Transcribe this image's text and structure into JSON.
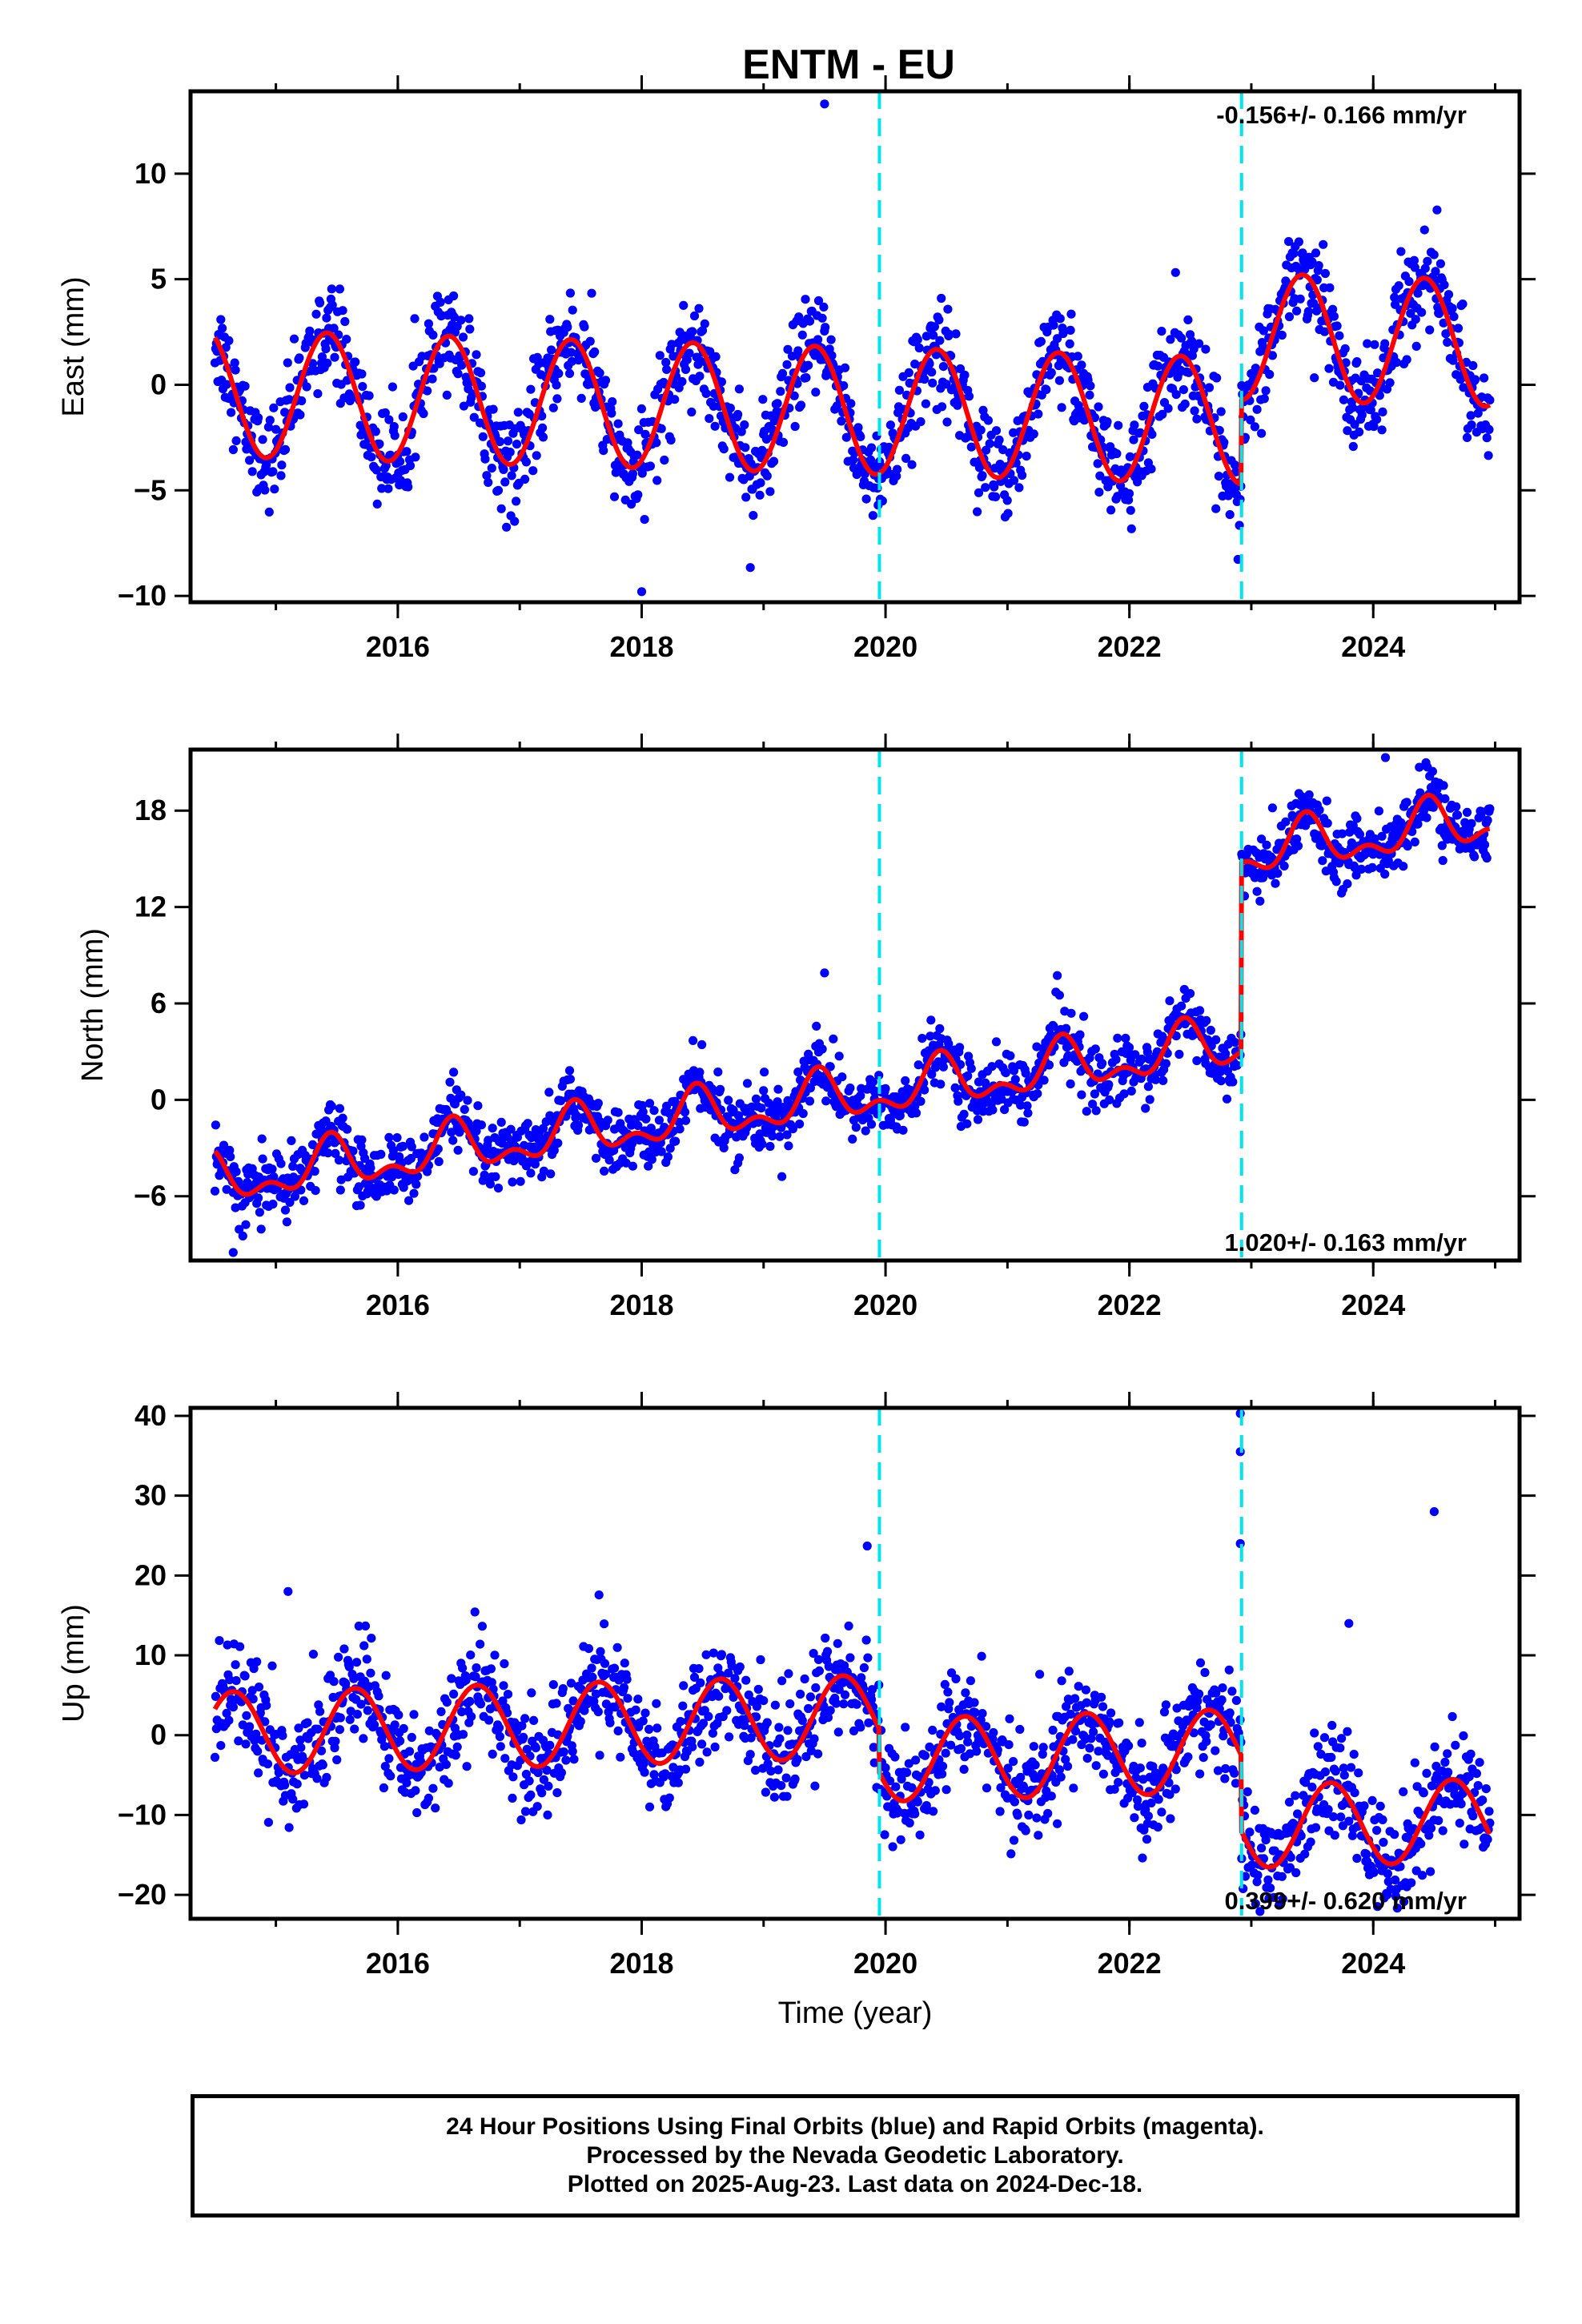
{
  "title": "ENTM - EU",
  "footer": {
    "line1": "24 Hour Positions Using Final Orbits (blue) and Rapid Orbits (magenta).",
    "line2": "Processed by the Nevada Geodetic Laboratory.",
    "line3": "Plotted on 2025-Aug-23. Last data on 2024-Dec-18."
  },
  "colors": {
    "points": "#0000ff",
    "model": "#ff0000",
    "steps": "#00e5ee",
    "frame": "#000000"
  },
  "step_epochs": [
    2019.95,
    2022.92
  ],
  "chart_data": [
    {
      "type": "scatter",
      "name": "east",
      "ylabel": "East (mm)",
      "xlabel": "",
      "xlim": [
        2014.3,
        2025.2
      ],
      "ylim": [
        -10.3,
        13.9
      ],
      "x_ticks": [
        2016,
        2018,
        2020,
        2022,
        2024
      ],
      "x_tick_labels": [
        "2016",
        "2018",
        "2020",
        "2022",
        "2024"
      ],
      "y_ticks": [
        -10,
        -5,
        0,
        5,
        10
      ],
      "y_tick_labels": [
        "−10",
        "−5",
        "0",
        "5",
        "10"
      ],
      "rate": "-0.156+/- 0.166 mm/yr",
      "rate_position": "top-right",
      "data_start": 2014.5,
      "data_end": 2024.96,
      "model": {
        "offset": -1.1,
        "trend": -0.156,
        "ref_epoch": 2019.0,
        "annual_amp": 3.0,
        "annual_peak": 2014.42,
        "semi_amp": 0.0,
        "steps": [
          {
            "epoch": 2019.95,
            "size": 0
          },
          {
            "epoch": 2022.92,
            "size": 4.0
          }
        ]
      },
      "noise": 1.15,
      "outliers": [
        [
          2019.5,
          13.3
        ],
        [
          2018.0,
          -9.8
        ]
      ]
    },
    {
      "type": "scatter",
      "name": "north",
      "ylabel": "North (mm)",
      "xlabel": "",
      "xlim": [
        2014.3,
        2025.2
      ],
      "ylim": [
        -10.0,
        21.8
      ],
      "x_ticks": [
        2016,
        2018,
        2020,
        2022,
        2024
      ],
      "x_tick_labels": [
        "2016",
        "2018",
        "2020",
        "2022",
        "2024"
      ],
      "y_ticks": [
        -6,
        0,
        6,
        12,
        18
      ],
      "y_tick_labels": [
        "−6",
        "0",
        "6",
        "12",
        "18"
      ],
      "rate": "1.020+/- 0.163 mm/yr",
      "rate_position": "bottom-right",
      "data_start": 2014.5,
      "data_end": 2024.96,
      "model": {
        "offset": -0.5,
        "trend": 1.02,
        "ref_epoch": 2019.0,
        "annual_amp": 1.3,
        "annual_peak": 2014.45,
        "semi_amp": 0.8,
        "steps": [
          {
            "epoch": 2019.95,
            "size": 0
          },
          {
            "epoch": 2022.92,
            "size": 11.8
          }
        ]
      },
      "noise": 1.0,
      "outliers": [
        [
          2019.5,
          7.9
        ],
        [
          2024.1,
          21.3
        ],
        [
          2014.65,
          -9.5
        ]
      ]
    },
    {
      "type": "scatter",
      "name": "up",
      "ylabel": "Up (mm)",
      "xlabel": "Time (year)",
      "xlim": [
        2014.3,
        2025.2
      ],
      "ylim": [
        -23.0,
        41.0
      ],
      "x_ticks": [
        2016,
        2018,
        2020,
        2022,
        2024
      ],
      "x_tick_labels": [
        "2016",
        "2018",
        "2020",
        "2022",
        "2024"
      ],
      "y_ticks": [
        -20,
        -10,
        0,
        10,
        20,
        30,
        40
      ],
      "y_tick_labels": [
        "−20",
        "−10",
        "0",
        "10",
        "20",
        "30",
        "40"
      ],
      "rate": "0.399+/- 0.620 mm/yr",
      "rate_position": "bottom-right",
      "data_start": 2014.5,
      "data_end": 2024.96,
      "model": {
        "offset": 2.0,
        "trend": 0.399,
        "ref_epoch": 2019.0,
        "annual_amp": 5.2,
        "annual_peak": 2014.65,
        "semi_amp": 0.0,
        "steps": [
          {
            "epoch": 2019.95,
            "size": -5.5
          },
          {
            "epoch": 2022.92,
            "size": -9.5
          }
        ]
      },
      "noise": 3.3,
      "outliers": [
        [
          2022.91,
          40.3
        ],
        [
          2022.91,
          35.5
        ],
        [
          2024.5,
          28.0
        ],
        [
          2019.85,
          23.7
        ],
        [
          2022.91,
          24.0
        ],
        [
          2023.8,
          14.0
        ],
        [
          2015.1,
          18.0
        ]
      ]
    }
  ]
}
